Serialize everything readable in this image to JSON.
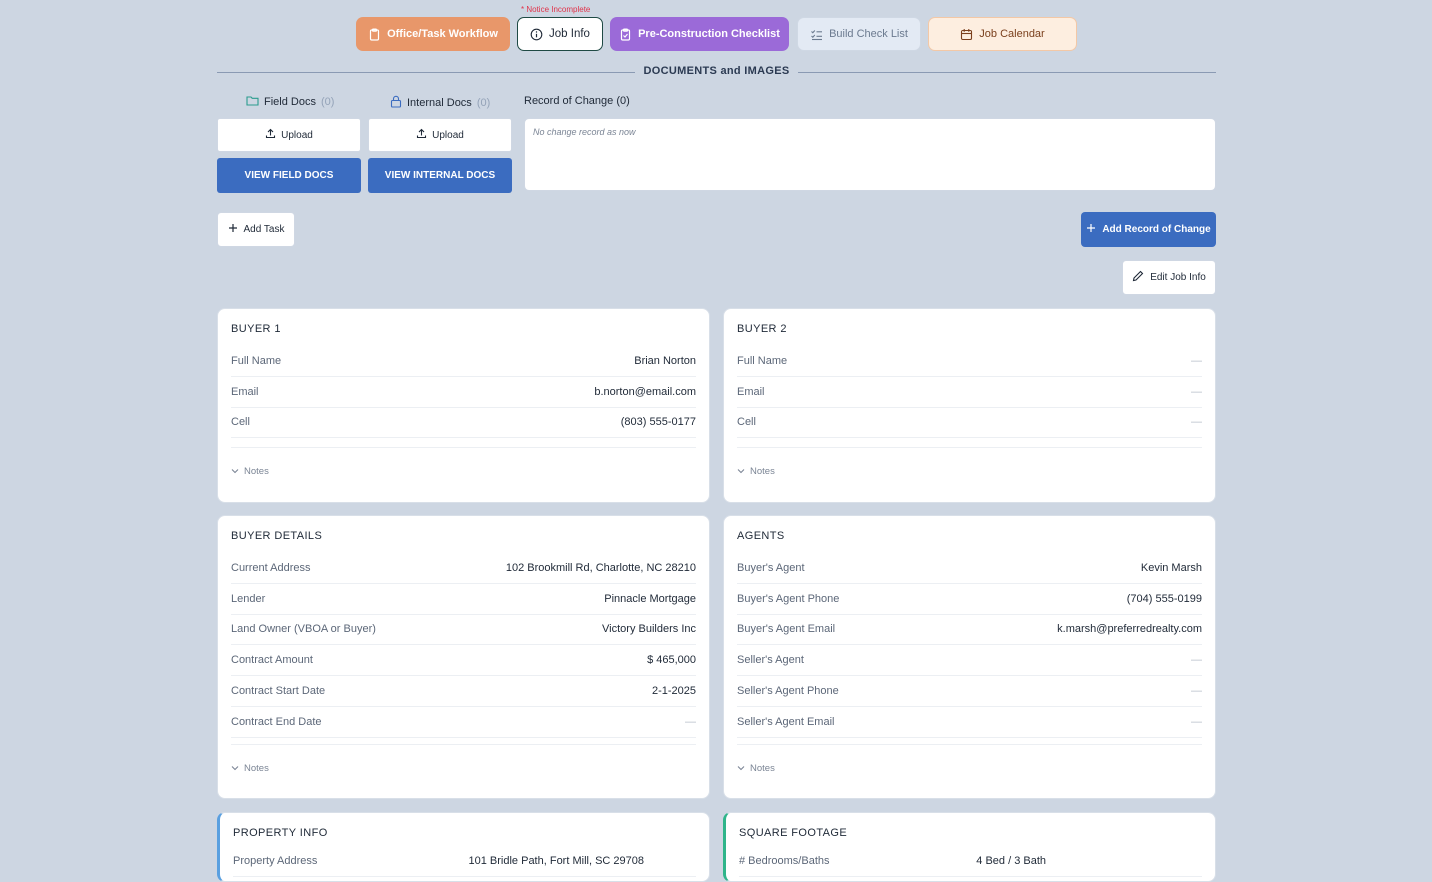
{
  "topnav": {
    "notice": "* Notice Incomplete",
    "tabs": {
      "office": "Office/Task Workflow",
      "jobinfo": "Job Info",
      "precon": "Pre-Construction Checklist",
      "build": "Build Check List",
      "calendar": "Job Calendar"
    }
  },
  "docs": {
    "section_title": "DOCUMENTS and IMAGES",
    "field_docs_label": "Field Docs",
    "field_docs_count": "(0)",
    "internal_docs_label": "Internal Docs",
    "internal_docs_count": "(0)",
    "upload_label": "Upload",
    "view_field_label": "VIEW FIELD DOCS",
    "view_internal_label": "VIEW INTERNAL DOCS",
    "record_of_change_label": "Record of Change (0)",
    "record_of_change_empty": "No change record as now"
  },
  "actions": {
    "add_task": "Add Task",
    "add_record": "Add Record of Change",
    "edit_job_info": "Edit Job Info"
  },
  "buyer1": {
    "title": "BUYER 1",
    "rows": [
      {
        "k": "Full Name",
        "v": "Brian Norton"
      },
      {
        "k": "Email",
        "v": "b.norton@email.com"
      },
      {
        "k": "Cell",
        "v": "(803) 555-0177"
      }
    ],
    "notes": "Notes"
  },
  "buyer2": {
    "title": "BUYER 2",
    "rows": [
      {
        "k": "Full Name",
        "v": "—"
      },
      {
        "k": "Email",
        "v": "—"
      },
      {
        "k": "Cell",
        "v": "—"
      }
    ],
    "notes": "Notes"
  },
  "buyer_details": {
    "title": "BUYER DETAILS",
    "rows": [
      {
        "k": "Current Address",
        "v": "102 Brookmill Rd, Charlotte, NC 28210"
      },
      {
        "k": "Lender",
        "v": "Pinnacle Mortgage"
      },
      {
        "k": "Land Owner (VBOA or Buyer)",
        "v": "Victory Builders Inc"
      },
      {
        "k": "Contract Amount",
        "v": "$ 465,000"
      },
      {
        "k": "Contract Start Date",
        "v": "2-1-2025"
      },
      {
        "k": "Contract End Date",
        "v": "—"
      }
    ],
    "notes": "Notes"
  },
  "agents": {
    "title": "AGENTS",
    "rows": [
      {
        "k": "Buyer's Agent",
        "v": "Kevin Marsh"
      },
      {
        "k": "Buyer's Agent Phone",
        "v": "(704) 555-0199"
      },
      {
        "k": "Buyer's Agent Email",
        "v": "k.marsh@preferredrealty.com"
      },
      {
        "k": "Seller's Agent",
        "v": "—"
      },
      {
        "k": "Seller's Agent Phone",
        "v": "—"
      },
      {
        "k": "Seller's Agent Email",
        "v": "—"
      }
    ],
    "notes": "Notes"
  },
  "property": {
    "title": "PROPERTY INFO",
    "rows": [
      {
        "k": "Property Address",
        "v": "101 Bridle Path, Fort Mill, SC 29708"
      }
    ]
  },
  "square_footage": {
    "title": "SQUARE FOOTAGE",
    "rows": [
      {
        "k": "# Bedrooms/Baths",
        "v": "4 Bed / 3 Bath"
      }
    ]
  }
}
